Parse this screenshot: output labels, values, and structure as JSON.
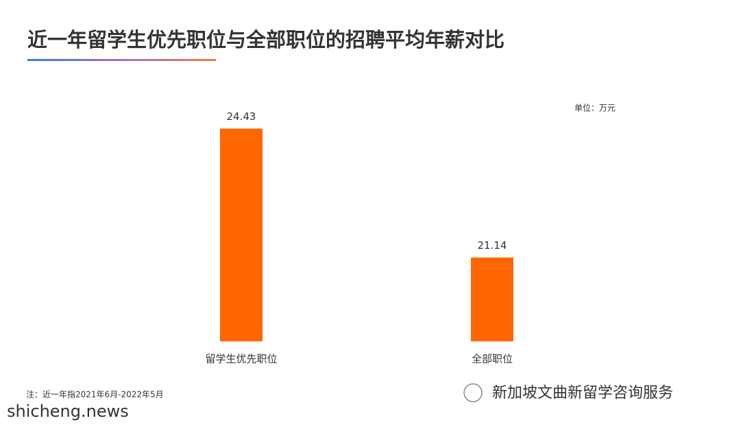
{
  "chart_data": {
    "type": "bar",
    "title": "近一年留学生优先职位与全部职位的招聘平均年薪对比",
    "unit": "单位：万元",
    "categories": [
      "留学生优先职位",
      "全部职位"
    ],
    "values": [
      24.43,
      21.14
    ],
    "color": "#ff6600",
    "ylim": [
      19,
      25
    ],
    "note": "注：近一年指2021年6月-2022年5月",
    "watermark": "shicheng.news",
    "account": "新加坡文曲新留学咨询服务"
  }
}
